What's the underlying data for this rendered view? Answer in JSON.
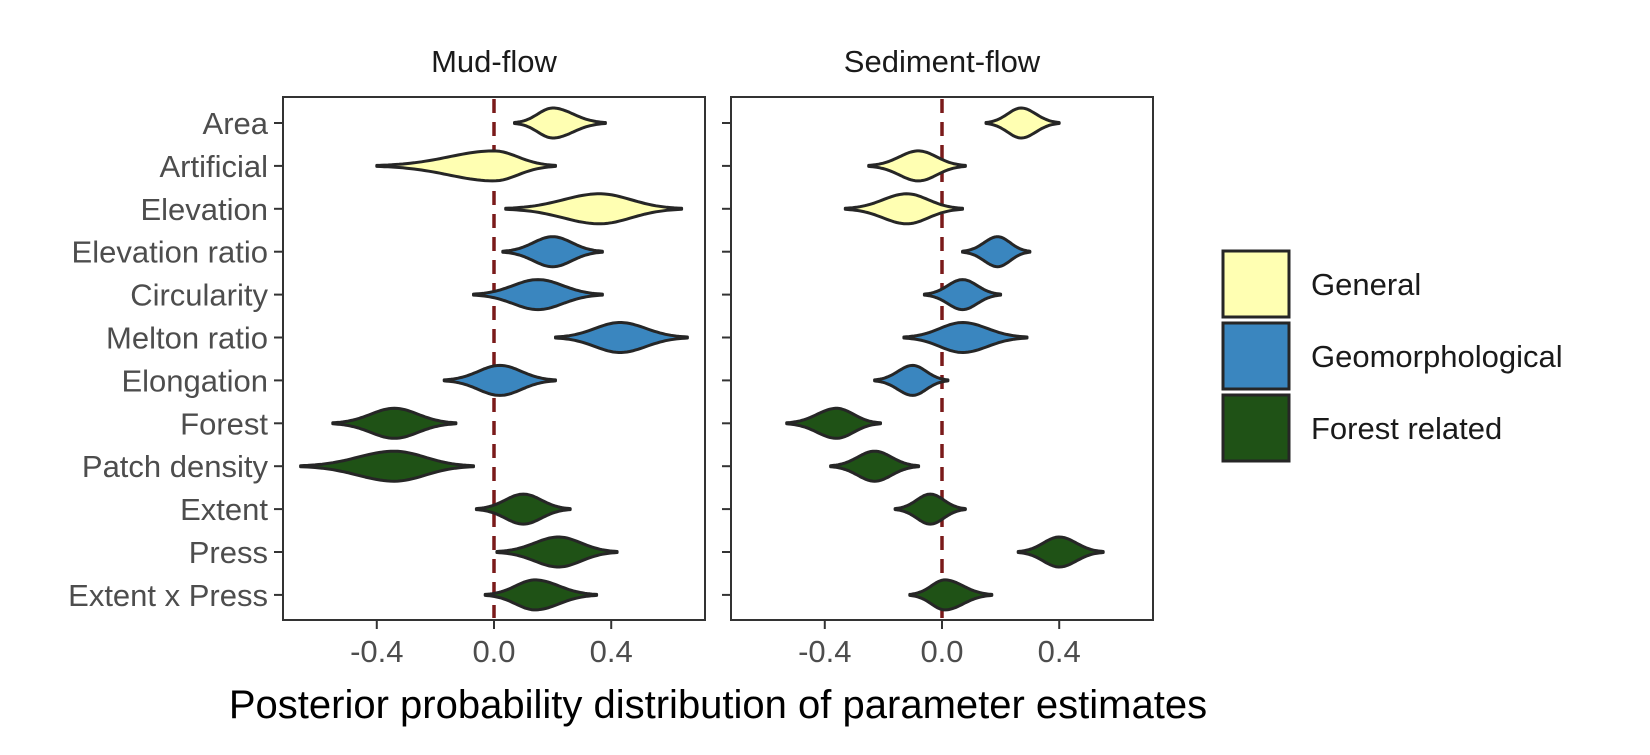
{
  "chart_data": {
    "type": "violin",
    "facets": [
      "Mud-flow",
      "Sediment-flow"
    ],
    "categories": [
      "Area",
      "Artificial",
      "Elevation",
      "Elevation ratio",
      "Circularity",
      "Melton ratio",
      "Elongation",
      "Forest",
      "Patch density",
      "Extent",
      "Press",
      "Extent x Press"
    ],
    "category_group": [
      "General",
      "General",
      "General",
      "Geomorphological",
      "Geomorphological",
      "Geomorphological",
      "Geomorphological",
      "Forest related",
      "Forest related",
      "Forest related",
      "Forest related",
      "Forest related"
    ],
    "x_ticks": [
      -0.4,
      0.0,
      0.4
    ],
    "x_tick_labels": [
      "-0.4",
      "0.0",
      "0.4"
    ],
    "xlim": [
      -0.72,
      0.72
    ],
    "xlabel": "Posterior probability distribution of parameter estimates",
    "ylabel": "",
    "reference_line": {
      "x": 0.0,
      "style": "dashed",
      "color": "#7a1a1a"
    },
    "legend": {
      "position": "right",
      "entries": [
        {
          "label": "General",
          "color": "#ffffb2"
        },
        {
          "label": "Geomorphological",
          "color": "#3a86bf"
        },
        {
          "label": "Forest related",
          "color": "#1f5216"
        }
      ]
    },
    "series": [
      {
        "facet": "Mud-flow",
        "estimates": [
          {
            "category": "Area",
            "min": 0.07,
            "median": 0.2,
            "max": 0.38
          },
          {
            "category": "Artificial",
            "min": -0.4,
            "median": 0.0,
            "max": 0.21
          },
          {
            "category": "Elevation",
            "min": 0.04,
            "median": 0.36,
            "max": 0.64
          },
          {
            "category": "Elevation ratio",
            "min": 0.03,
            "median": 0.2,
            "max": 0.37
          },
          {
            "category": "Circularity",
            "min": -0.07,
            "median": 0.15,
            "max": 0.37
          },
          {
            "category": "Melton ratio",
            "min": 0.21,
            "median": 0.43,
            "max": 0.66
          },
          {
            "category": "Elongation",
            "min": -0.17,
            "median": 0.02,
            "max": 0.21
          },
          {
            "category": "Forest",
            "min": -0.55,
            "median": -0.34,
            "max": -0.13
          },
          {
            "category": "Patch density",
            "min": -0.66,
            "median": -0.34,
            "max": -0.07
          },
          {
            "category": "Extent",
            "min": -0.06,
            "median": 0.1,
            "max": 0.26
          },
          {
            "category": "Press",
            "min": 0.01,
            "median": 0.22,
            "max": 0.42
          },
          {
            "category": "Extent x Press",
            "min": -0.03,
            "median": 0.14,
            "max": 0.35
          }
        ]
      },
      {
        "facet": "Sediment-flow",
        "estimates": [
          {
            "category": "Area",
            "min": 0.15,
            "median": 0.27,
            "max": 0.4
          },
          {
            "category": "Artificial",
            "min": -0.25,
            "median": -0.08,
            "max": 0.08
          },
          {
            "category": "Elevation",
            "min": -0.33,
            "median": -0.12,
            "max": 0.07
          },
          {
            "category": "Elevation ratio",
            "min": 0.07,
            "median": 0.19,
            "max": 0.3
          },
          {
            "category": "Circularity",
            "min": -0.06,
            "median": 0.07,
            "max": 0.2
          },
          {
            "category": "Melton ratio",
            "min": -0.13,
            "median": 0.07,
            "max": 0.29
          },
          {
            "category": "Elongation",
            "min": -0.23,
            "median": -0.1,
            "max": 0.02
          },
          {
            "category": "Forest",
            "min": -0.53,
            "median": -0.36,
            "max": -0.21
          },
          {
            "category": "Patch density",
            "min": -0.38,
            "median": -0.23,
            "max": -0.08
          },
          {
            "category": "Extent",
            "min": -0.16,
            "median": -0.04,
            "max": 0.08
          },
          {
            "category": "Press",
            "min": 0.26,
            "median": 0.4,
            "max": 0.55
          },
          {
            "category": "Extent x Press",
            "min": -0.11,
            "median": 0.01,
            "max": 0.17
          }
        ]
      }
    ]
  }
}
